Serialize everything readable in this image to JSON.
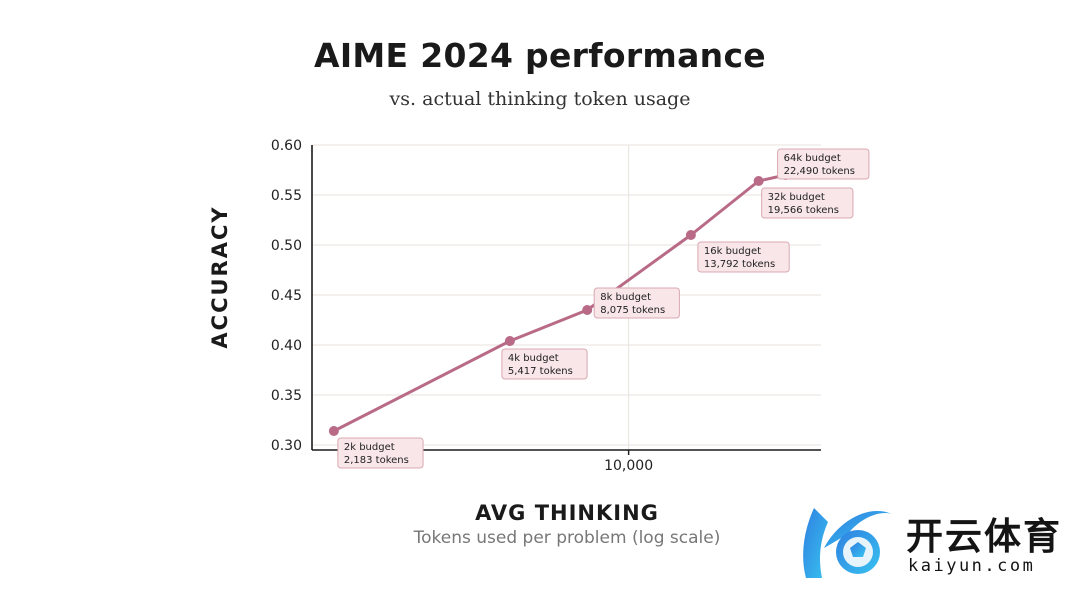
{
  "chart_data": {
    "type": "line",
    "title": "AIME 2024 performance",
    "subtitle": "vs. actual thinking token usage",
    "xlabel": "AVG THINKING",
    "xlabel_sub": "Tokens used per problem (log scale)",
    "ylabel": "ACCURACY",
    "x_scale": "log",
    "xlim": [
      1950,
      27000
    ],
    "ylim": [
      0.295,
      0.6
    ],
    "x_ticks": [
      10000
    ],
    "x_tick_labels": [
      "10,000"
    ],
    "y_ticks": [
      0.3,
      0.35,
      0.4,
      0.45,
      0.5,
      0.55,
      0.6
    ],
    "y_tick_labels": [
      "0.30",
      "0.35",
      "0.40",
      "0.45",
      "0.50",
      "0.55",
      "0.60"
    ],
    "grid": true,
    "line_color": "#b86a86",
    "annotation_bg": "#f8e6e8",
    "annotation_border": "#d9a9b2",
    "series": [
      {
        "x": [
          2183,
          5417,
          8075,
          13792,
          19566,
          22490
        ],
        "y": [
          0.314,
          0.404,
          0.435,
          0.51,
          0.564,
          0.57
        ]
      }
    ],
    "annotations": [
      {
        "line1": "2k budget",
        "line2": "2,183 tokens"
      },
      {
        "line1": "4k budget",
        "line2": "5,417 tokens"
      },
      {
        "line1": "8k budget",
        "line2": "8,075 tokens"
      },
      {
        "line1": "16k budget",
        "line2": "13,792 tokens"
      },
      {
        "line1": "32k budget",
        "line2": "19,566 tokens"
      },
      {
        "line1": "64k budget",
        "line2": "22,490 tokens"
      }
    ]
  },
  "watermark": {
    "brand_cn": "开云体育",
    "brand_en": "kaiyun.com",
    "logo_colors": [
      "#2f7fe0",
      "#38c3f0",
      "#e8f4fc"
    ]
  }
}
